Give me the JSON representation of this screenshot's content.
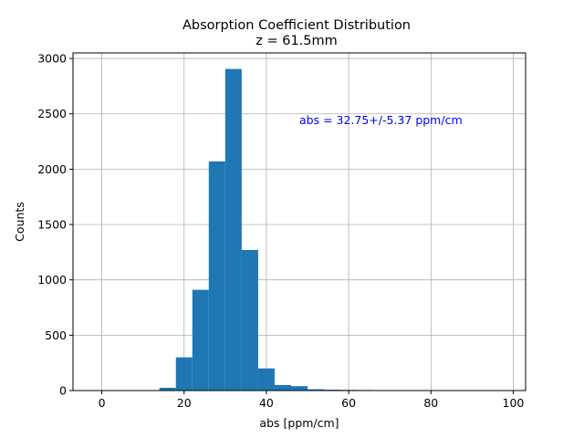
{
  "chart_data": {
    "type": "bar",
    "title": "Absorption Coefficient Distribution",
    "subtitle": "z = 61.5mm",
    "xlabel": "abs [ppm/cm]",
    "ylabel": "Counts",
    "xlim": [
      -7,
      103
    ],
    "ylim": [
      0,
      3050
    ],
    "xticks": [
      0,
      20,
      40,
      60,
      80,
      100
    ],
    "yticks": [
      0,
      500,
      1000,
      1500,
      2000,
      2500,
      3000
    ],
    "grid": true,
    "bar_color": "#1f77b4",
    "bin_width": 4,
    "bins": [
      {
        "x0": 14,
        "x1": 18,
        "count": 25
      },
      {
        "x0": 18,
        "x1": 22,
        "count": 300
      },
      {
        "x0": 22,
        "x1": 26,
        "count": 910
      },
      {
        "x0": 26,
        "x1": 30,
        "count": 2070
      },
      {
        "x0": 30,
        "x1": 34,
        "count": 2905
      },
      {
        "x0": 34,
        "x1": 38,
        "count": 1270
      },
      {
        "x0": 38,
        "x1": 42,
        "count": 200
      },
      {
        "x0": 42,
        "x1": 46,
        "count": 50
      },
      {
        "x0": 46,
        "x1": 50,
        "count": 40
      },
      {
        "x0": 50,
        "x1": 54,
        "count": 12
      },
      {
        "x0": 54,
        "x1": 58,
        "count": 8
      },
      {
        "x0": 58,
        "x1": 62,
        "count": 6
      },
      {
        "x0": 62,
        "x1": 66,
        "count": 5
      },
      {
        "x0": 66,
        "x1": 70,
        "count": 4
      },
      {
        "x0": 70,
        "x1": 74,
        "count": 3
      }
    ],
    "annotation": {
      "text": "abs = 32.75+/-5.37 ppm/cm",
      "x": 48,
      "y": 2450,
      "color": "#0000ff"
    }
  }
}
